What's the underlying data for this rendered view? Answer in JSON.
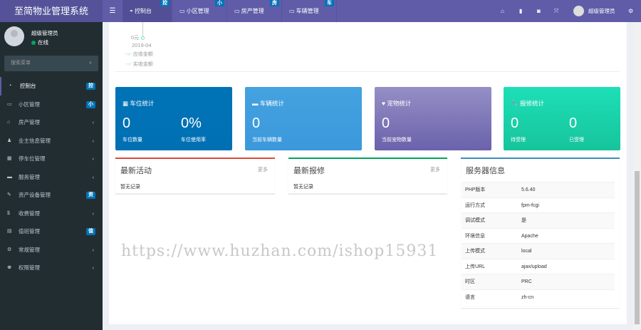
{
  "header": {
    "logo": "至简物业管理系统",
    "toggle_icon": "bars-icon",
    "tabs": [
      {
        "label": "控制台",
        "badge": "控",
        "icon": "dashboard-icon"
      },
      {
        "label": "小区管理",
        "badge": "小",
        "icon": "list-icon"
      },
      {
        "label": "房产管理",
        "badge": "房",
        "icon": "list-icon"
      },
      {
        "label": "车辆管理",
        "badge": "车",
        "icon": "list-icon"
      }
    ],
    "right_icons": [
      "home-icon",
      "trash-icon",
      "refresh-icon",
      "fullscreen-icon"
    ],
    "user": "超级管理员",
    "settings_icon": "gears-icon"
  },
  "sidebar": {
    "user_name": "超级管理员",
    "status": "在线",
    "search_placeholder": "搜索菜单",
    "items": [
      {
        "label": "控制台",
        "badge": "控",
        "icon": "◔"
      },
      {
        "label": "小区管理",
        "badge": "小",
        "icon": "▭"
      },
      {
        "label": "房产管理",
        "icon": "⌂"
      },
      {
        "label": "业主信息管理",
        "icon": "♟"
      },
      {
        "label": "停车位管理",
        "icon": "▦"
      },
      {
        "label": "服务管理",
        "icon": "▬"
      },
      {
        "label": "资产设备管理",
        "badge": "资",
        "icon": "✎"
      },
      {
        "label": "收费管理",
        "icon": "$"
      },
      {
        "label": "值班管理",
        "badge": "值",
        "icon": "▤"
      },
      {
        "label": "常规管理",
        "icon": "⚙"
      },
      {
        "label": "权限管理",
        "icon": "♚"
      }
    ]
  },
  "chart": {
    "y_label": "0元",
    "x_label": "2019-04",
    "legend": [
      {
        "name": "应收金额",
        "color": "#6fc3f0"
      },
      {
        "name": "实收金额",
        "color": "#6ee6c4"
      }
    ]
  },
  "cards": [
    {
      "title": "车位统计",
      "icon": "parking-icon",
      "color": "#0073b7",
      "stats": [
        {
          "value": "0",
          "label": "车位数量"
        },
        {
          "value": "0%",
          "label": "车位使用率"
        }
      ]
    },
    {
      "title": "车辆统计",
      "icon": "car-icon",
      "color": "#3c9fe0",
      "stats": [
        {
          "value": "0",
          "label": "当前车辆数量"
        }
      ]
    },
    {
      "title": "宠物统计",
      "icon": "heart-icon",
      "color": "#7d74b8",
      "stats": [
        {
          "value": "0",
          "label": "当前宠物数量"
        }
      ]
    },
    {
      "title": "报修统计",
      "icon": "wrench-icon",
      "color": "#1ccfa8",
      "stats": [
        {
          "value": "0",
          "label": "待受理"
        },
        {
          "value": "0",
          "label": "已受理"
        }
      ]
    }
  ],
  "activity": {
    "title": "最新活动",
    "more": "更多",
    "empty": "暂无记录"
  },
  "repair": {
    "title": "最新报修",
    "more": "更多",
    "empty": "暂无记录"
  },
  "server": {
    "title": "服务器信息",
    "rows": [
      [
        "PHP版本",
        "5.6.40"
      ],
      [
        "运行方式",
        "fpm-fcgi"
      ],
      [
        "调试模式",
        "是"
      ],
      [
        "环境信息",
        "Apache"
      ],
      [
        "上传模式",
        "local"
      ],
      [
        "上传URL",
        "ajax/upload"
      ],
      [
        "时区",
        "PRC"
      ],
      [
        "语言",
        "zh-cn"
      ]
    ]
  },
  "watermark": "https://www.huzhan.com/ishop15931"
}
